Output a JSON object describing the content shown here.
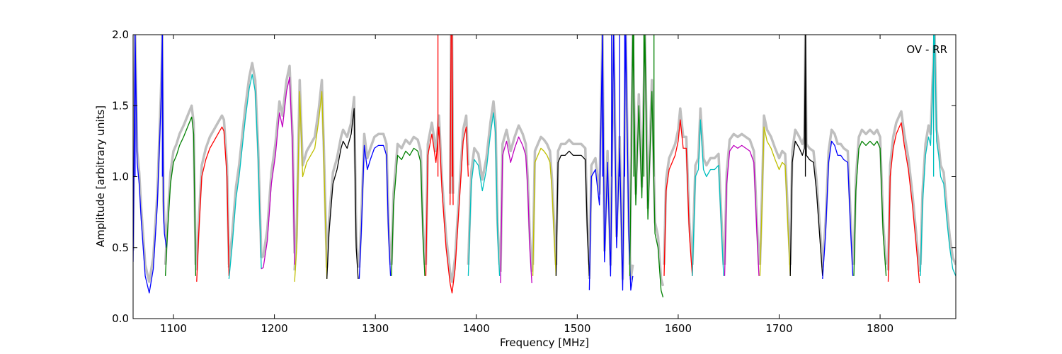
{
  "chart_data": {
    "type": "line",
    "title": "",
    "annotation": "OV - RR",
    "xlabel": "Frequency [MHz]",
    "ylabel": "Amplitude [arbitrary units]",
    "xlim": [
      1060,
      1875
    ],
    "ylim": [
      0.0,
      2.0
    ],
    "xticks": [
      1100,
      1200,
      1300,
      1400,
      1500,
      1600,
      1700,
      1800
    ],
    "yticks": [
      0.0,
      0.5,
      1.0,
      1.5,
      2.0
    ],
    "grid": false,
    "background_trace_color": "#bfbfbf",
    "colors": {
      "b": "#0000ff",
      "g": "#008000",
      "r": "#ff0000",
      "c": "#00bfbf",
      "m": "#bf00bf",
      "y": "#bfbf00",
      "k": "#000000"
    },
    "bands": [
      {
        "color": "b",
        "x": [
          1060,
          1062,
          1064,
          1066,
          1068,
          1072,
          1076,
          1080,
          1084,
          1086,
          1088,
          1089,
          1090,
          1091,
          1093
        ],
        "y": [
          0.4,
          2.0,
          1.1,
          0.95,
          0.7,
          0.3,
          0.18,
          0.35,
          0.8,
          1.2,
          1.6,
          2.0,
          0.75,
          0.6,
          0.5
        ]
      },
      {
        "color": "g",
        "x": [
          1092,
          1094,
          1097,
          1100,
          1103,
          1106,
          1110,
          1114,
          1118,
          1120,
          1122
        ],
        "y": [
          0.3,
          0.6,
          0.95,
          1.1,
          1.15,
          1.22,
          1.28,
          1.35,
          1.42,
          1.3,
          0.3
        ]
      },
      {
        "color": "r",
        "x": [
          1123,
          1125,
          1128,
          1132,
          1136,
          1140,
          1144,
          1148,
          1150,
          1153,
          1155
        ],
        "y": [
          0.26,
          0.6,
          1.0,
          1.12,
          1.2,
          1.25,
          1.3,
          1.35,
          1.32,
          1.0,
          0.3
        ]
      },
      {
        "color": "c",
        "x": [
          1155,
          1158,
          1162,
          1165,
          1168,
          1171,
          1175,
          1178,
          1181,
          1184,
          1187
        ],
        "y": [
          0.28,
          0.5,
          0.85,
          1.0,
          1.2,
          1.4,
          1.62,
          1.72,
          1.6,
          1.1,
          0.35
        ]
      },
      {
        "color": "m",
        "x": [
          1187,
          1189,
          1193,
          1197,
          1201,
          1205,
          1208,
          1212,
          1215,
          1218,
          1220
        ],
        "y": [
          0.35,
          0.36,
          0.55,
          0.95,
          1.15,
          1.45,
          1.35,
          1.6,
          1.7,
          1.2,
          0.38
        ]
      },
      {
        "color": "y",
        "x": [
          1220,
          1222,
          1225,
          1228,
          1232,
          1236,
          1240,
          1244,
          1247,
          1249,
          1252
        ],
        "y": [
          0.26,
          0.5,
          1.6,
          1.0,
          1.1,
          1.15,
          1.2,
          1.4,
          1.6,
          1.1,
          0.28
        ]
      },
      {
        "color": "k",
        "x": [
          1252,
          1254,
          1258,
          1262,
          1266,
          1268,
          1272,
          1276,
          1279,
          1281,
          1283
        ],
        "y": [
          0.28,
          0.6,
          0.95,
          1.05,
          1.2,
          1.25,
          1.2,
          1.3,
          1.48,
          0.5,
          0.28
        ]
      },
      {
        "color": "b",
        "x": [
          1284,
          1286,
          1289,
          1292,
          1295,
          1299,
          1303,
          1308,
          1311,
          1313,
          1315
        ],
        "y": [
          0.28,
          0.6,
          1.22,
          1.05,
          1.12,
          1.2,
          1.22,
          1.22,
          1.15,
          0.6,
          0.3
        ]
      },
      {
        "color": "g",
        "x": [
          1316,
          1318,
          1322,
          1326,
          1330,
          1334,
          1338,
          1342,
          1345,
          1347,
          1349
        ],
        "y": [
          0.3,
          0.8,
          1.15,
          1.12,
          1.18,
          1.15,
          1.2,
          1.18,
          1.1,
          0.6,
          0.3
        ]
      },
      {
        "color": "r",
        "x": [
          1350,
          1352,
          1356,
          1360,
          1363,
          1366,
          1370,
          1374,
          1376,
          1379,
          1383,
          1387,
          1390,
          1392
        ],
        "y": [
          0.3,
          1.15,
          1.3,
          1.1,
          1.35,
          0.9,
          0.5,
          0.25,
          0.18,
          0.35,
          0.8,
          1.25,
          1.35,
          1.0
        ]
      },
      {
        "color": "r",
        "x": [
          1374,
          1375,
          1376,
          1377
        ],
        "y": [
          0.8,
          2.0,
          2.0,
          0.8
        ]
      },
      {
        "color": "c",
        "x": [
          1392,
          1395,
          1398,
          1402,
          1406,
          1410,
          1414,
          1417,
          1419,
          1421,
          1423
        ],
        "y": [
          0.3,
          0.95,
          1.12,
          1.08,
          0.9,
          1.05,
          1.3,
          1.45,
          1.3,
          0.6,
          0.3
        ]
      },
      {
        "color": "m",
        "x": [
          1424,
          1426,
          1430,
          1434,
          1438,
          1442,
          1446,
          1449,
          1451,
          1453,
          1455
        ],
        "y": [
          0.25,
          1.15,
          1.25,
          1.1,
          1.2,
          1.28,
          1.22,
          1.15,
          0.9,
          0.5,
          0.25
        ]
      },
      {
        "color": "y",
        "x": [
          1456,
          1458,
          1461,
          1464,
          1467,
          1470,
          1473,
          1475,
          1477,
          1479
        ],
        "y": [
          0.3,
          1.1,
          1.15,
          1.2,
          1.18,
          1.15,
          1.1,
          0.9,
          0.6,
          0.3
        ]
      },
      {
        "color": "k",
        "x": [
          1479,
          1481,
          1484,
          1488,
          1492,
          1496,
          1500,
          1504,
          1508,
          1510,
          1512
        ],
        "y": [
          0.3,
          1.1,
          1.15,
          1.15,
          1.18,
          1.15,
          1.15,
          1.15,
          1.12,
          0.6,
          0.3
        ]
      },
      {
        "color": "b",
        "x": [
          1512,
          1514,
          1518,
          1522,
          1525,
          1527,
          1530,
          1533,
          1536,
          1539,
          1542,
          1545,
          1548,
          1551,
          1553,
          1555
        ],
        "y": [
          0.2,
          1.0,
          1.05,
          0.8,
          2.0,
          0.4,
          1.1,
          0.3,
          2.0,
          0.5,
          1.2,
          0.2,
          2.0,
          0.6,
          0.2,
          0.3
        ]
      },
      {
        "color": "g",
        "x": [
          1552,
          1555,
          1558,
          1561,
          1564,
          1567,
          1570,
          1574,
          1577,
          1580,
          1583,
          1585
        ],
        "y": [
          0.3,
          2.0,
          0.8,
          1.5,
          0.85,
          2.0,
          0.7,
          1.6,
          0.6,
          0.5,
          0.2,
          0.15
        ]
      },
      {
        "color": "r",
        "x": [
          1586,
          1588,
          1591,
          1594,
          1597,
          1600,
          1602,
          1605,
          1608,
          1611,
          1614
        ],
        "y": [
          0.3,
          0.9,
          1.05,
          1.1,
          1.15,
          1.25,
          1.4,
          1.2,
          1.2,
          0.6,
          0.3
        ]
      },
      {
        "color": "c",
        "x": [
          1614,
          1617,
          1620,
          1622,
          1625,
          1628,
          1632,
          1636,
          1640,
          1643,
          1645
        ],
        "y": [
          0.3,
          1.0,
          1.05,
          1.4,
          1.05,
          1.0,
          1.05,
          1.05,
          1.08,
          0.6,
          0.3
        ]
      },
      {
        "color": "m",
        "x": [
          1646,
          1648,
          1651,
          1655,
          1659,
          1663,
          1667,
          1671,
          1675,
          1678,
          1680
        ],
        "y": [
          0.3,
          0.95,
          1.18,
          1.22,
          1.2,
          1.22,
          1.2,
          1.18,
          1.1,
          0.6,
          0.3
        ]
      },
      {
        "color": "y",
        "x": [
          1681,
          1683,
          1685,
          1688,
          1692,
          1696,
          1700,
          1703,
          1706,
          1709,
          1711
        ],
        "y": [
          0.3,
          0.8,
          1.35,
          1.25,
          1.2,
          1.12,
          1.05,
          1.1,
          1.08,
          0.6,
          0.3
        ]
      },
      {
        "color": "k",
        "x": [
          1711,
          1713,
          1716,
          1720,
          1723,
          1725,
          1726,
          1727,
          1730,
          1734,
          1737,
          1740,
          1743
        ],
        "y": [
          0.3,
          1.1,
          1.25,
          1.2,
          1.15,
          1.2,
          2.0,
          1.15,
          1.12,
          1.1,
          0.9,
          0.6,
          0.3
        ]
      },
      {
        "color": "b",
        "x": [
          1743,
          1746,
          1749,
          1752,
          1755,
          1758,
          1761,
          1764,
          1768,
          1771,
          1773
        ],
        "y": [
          0.28,
          0.6,
          1.1,
          1.25,
          1.22,
          1.15,
          1.15,
          1.12,
          1.1,
          0.6,
          0.3
        ]
      },
      {
        "color": "g",
        "x": [
          1774,
          1776,
          1779,
          1782,
          1786,
          1790,
          1794,
          1797,
          1800,
          1803,
          1806
        ],
        "y": [
          0.3,
          0.9,
          1.2,
          1.25,
          1.22,
          1.25,
          1.22,
          1.25,
          1.2,
          0.6,
          0.3
        ]
      },
      {
        "color": "r",
        "x": [
          1808,
          1810,
          1813,
          1816,
          1819,
          1821,
          1824,
          1828,
          1832,
          1836,
          1839
        ],
        "y": [
          0.26,
          1.0,
          1.2,
          1.3,
          1.35,
          1.38,
          1.22,
          1.05,
          0.8,
          0.5,
          0.25
        ]
      },
      {
        "color": "c",
        "x": [
          1840,
          1842,
          1845,
          1848,
          1850,
          1852,
          1854,
          1856,
          1858,
          1860,
          1863,
          1866,
          1869,
          1872,
          1875
        ],
        "y": [
          0.3,
          0.8,
          1.15,
          1.28,
          1.22,
          1.6,
          2.0,
          1.25,
          1.15,
          1.0,
          0.95,
          0.7,
          0.5,
          0.35,
          0.3
        ]
      }
    ],
    "spikes": [
      {
        "color": "b",
        "x": 1062,
        "y": 2.0
      },
      {
        "color": "b",
        "x": 1089,
        "y": 2.0
      },
      {
        "color": "r",
        "x": 1362,
        "y": 2.0
      },
      {
        "color": "r",
        "x": 1376,
        "y": 2.0
      },
      {
        "color": "b",
        "x": 1525,
        "y": 2.0
      },
      {
        "color": "b",
        "x": 1534,
        "y": 2.0
      },
      {
        "color": "b",
        "x": 1542,
        "y": 2.0
      },
      {
        "color": "b",
        "x": 1547,
        "y": 2.0
      },
      {
        "color": "g",
        "x": 1556,
        "y": 2.0
      },
      {
        "color": "g",
        "x": 1566,
        "y": 2.0
      },
      {
        "color": "g",
        "x": 1576,
        "y": 2.0
      },
      {
        "color": "k",
        "x": 1726,
        "y": 2.0
      },
      {
        "color": "c",
        "x": 1853,
        "y": 2.0
      }
    ]
  }
}
